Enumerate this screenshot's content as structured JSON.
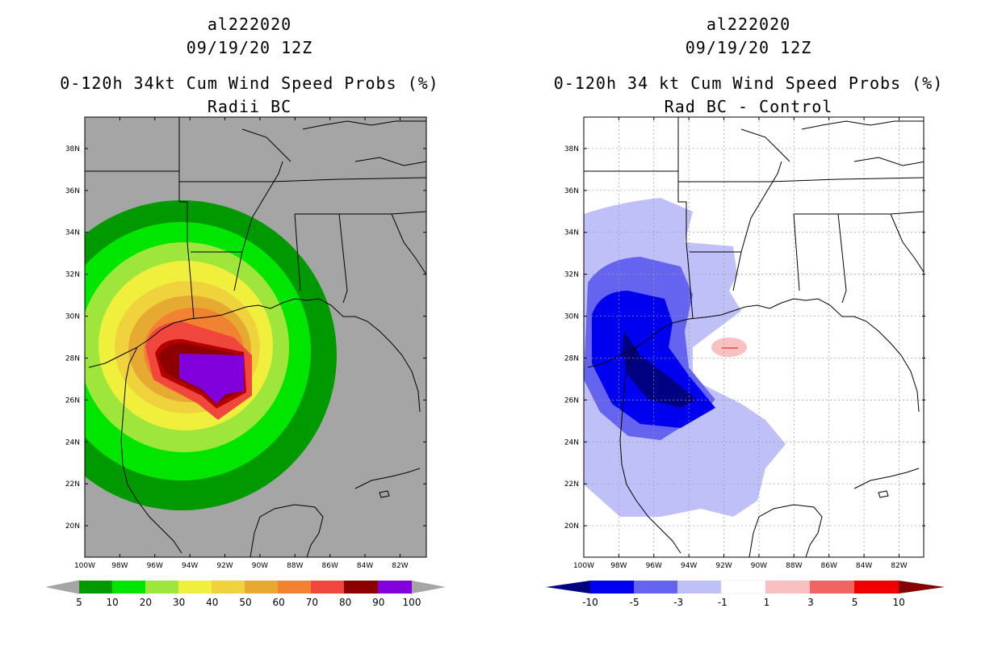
{
  "left": {
    "storm_id": "al222020",
    "datetime": "09/19/20 12Z",
    "title": "0-120h 34kt Cum Wind Speed Probs (%)",
    "subtitle": "Radii BC",
    "lat_labels": [
      "38N",
      "36N",
      "34N",
      "32N",
      "30N",
      "28N",
      "26N",
      "24N",
      "22N",
      "20N"
    ],
    "lon_labels": [
      "100W",
      "98W",
      "96W",
      "94W",
      "92W",
      "90W",
      "88W",
      "86W",
      "84W",
      "82W"
    ],
    "colorbar_labels": [
      "5",
      "10",
      "20",
      "30",
      "40",
      "50",
      "60",
      "70",
      "80",
      "90",
      "100"
    ],
    "colors": {
      "ocean": "#a5a5a5",
      "c5": "#009a00",
      "c10": "#00e600",
      "c20": "#9ee63c",
      "c30": "#f0f03c",
      "c40": "#f0d23c",
      "c50": "#e6aa32",
      "c60": "#f08232",
      "c70": "#f0463c",
      "c80": "#b40000",
      "c90": "#8c0000",
      "c100": "#8200dc"
    }
  },
  "right": {
    "storm_id": "al222020",
    "datetime": "09/19/20 12Z",
    "title": "0-120h 34 kt Cum Wind Speed Probs (%)",
    "subtitle": "Rad BC - Control",
    "lat_labels": [
      "38N",
      "36N",
      "34N",
      "32N",
      "30N",
      "28N",
      "26N",
      "24N",
      "22N",
      "20N"
    ],
    "lon_labels": [
      "100W",
      "98W",
      "96W",
      "94W",
      "92W",
      "90W",
      "88W",
      "86W",
      "84W",
      "82W"
    ],
    "colorbar_labels": [
      "-10",
      "-5",
      "-3",
      "-1",
      "1",
      "3",
      "5",
      "10"
    ],
    "colors": {
      "n10": "#000082",
      "n5": "#0000f0",
      "n3": "#6464f0",
      "n1": "#c0c0f8",
      "zero": "#ffffff",
      "p1": "#f8c0c0",
      "p3": "#f06464",
      "p5": "#f00000",
      "p10": "#820000"
    }
  }
}
